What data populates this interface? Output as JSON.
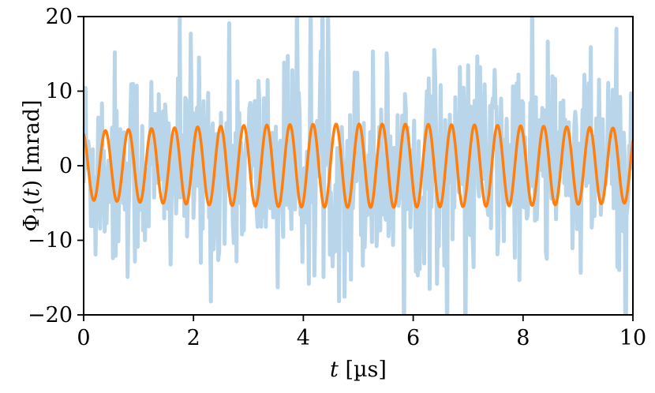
{
  "chart_data": {
    "type": "line",
    "title": "",
    "xlabel": "t [µs]",
    "ylabel": "Φ1(t) [mrad]",
    "xlim": [
      0,
      10
    ],
    "ylim": [
      -20,
      20
    ],
    "x_ticks": [
      0,
      2,
      4,
      6,
      8,
      10
    ],
    "y_ticks": [
      -20,
      -10,
      0,
      10,
      20
    ],
    "x_tick_labels": [
      "0",
      "2",
      "4",
      "6",
      "8",
      "10"
    ],
    "y_tick_labels": [
      "−20",
      "−10",
      "0",
      "10",
      "20"
    ],
    "grid": false,
    "legend": "none",
    "series": [
      {
        "kind": "noisy-measurement",
        "color": "#b9d5ea",
        "approx_mean": 0,
        "approx_std": 7.5,
        "approx_range": [
          -20,
          20
        ],
        "samples": 600
      },
      {
        "kind": "sinusoid-fit",
        "color": "#ff7f0e",
        "amplitude_start": 4.6,
        "amplitude_peak": 5.6,
        "amplitude_end": 5.0,
        "period_us": 0.42,
        "value_at_0": 4.3,
        "samples": 1200
      }
    ]
  }
}
